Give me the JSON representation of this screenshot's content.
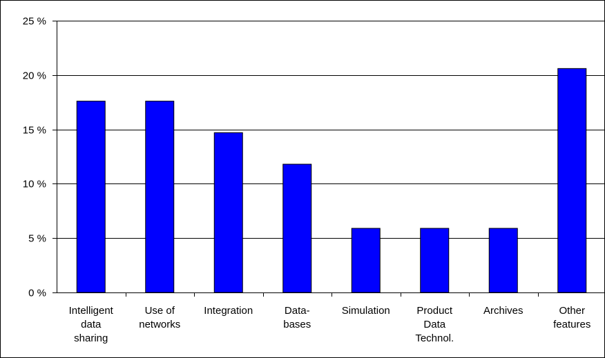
{
  "chart_data": {
    "type": "bar",
    "categories": [
      [
        "Intelligent",
        "data",
        "sharing"
      ],
      [
        "Use of",
        "networks"
      ],
      [
        "Integration"
      ],
      [
        "Data-",
        "bases"
      ],
      [
        "Simulation"
      ],
      [
        "Product",
        "Data",
        "Technol."
      ],
      [
        "Archives"
      ],
      [
        "Other",
        "features"
      ]
    ],
    "values": [
      17.6,
      17.6,
      14.7,
      11.8,
      5.9,
      5.9,
      5.9,
      20.6
    ],
    "yticks": [
      "0 %",
      "5 %",
      "10 %",
      "15 %",
      "20 %",
      "25 %"
    ],
    "ylim": [
      0,
      25
    ],
    "grid": true,
    "title": "",
    "xlabel": "",
    "ylabel": "",
    "colors": {
      "bar": "#0000ff",
      "bar_outline": "#000000",
      "grid": "#000000",
      "frame": "#000000"
    }
  }
}
